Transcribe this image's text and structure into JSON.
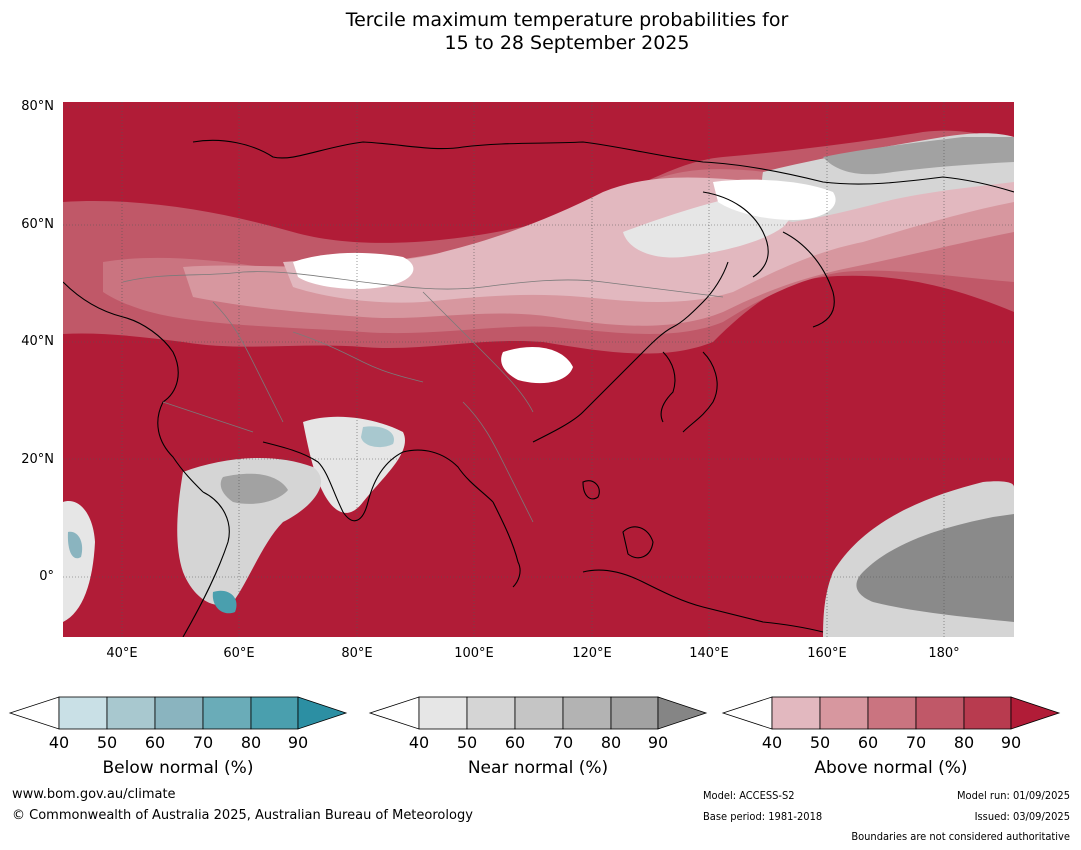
{
  "title": {
    "line1": "Tercile maximum temperature probabilities for",
    "line2": "15 to 28 September 2025"
  },
  "map": {
    "lat_labels": [
      "80°N",
      "60°N",
      "40°N",
      "20°N",
      "0°"
    ],
    "lon_labels": [
      "40°E",
      "60°E",
      "80°E",
      "100°E",
      "120°E",
      "140°E",
      "160°E",
      "180°"
    ],
    "region": "Asia",
    "colors": {
      "above_dominant": "#b11c37",
      "near_dominant": "#8a8a8a",
      "below_dominant": "#2c8fa3"
    }
  },
  "colorbars": [
    {
      "name": "below",
      "label": "Below normal (%)",
      "ticks": [
        "40",
        "50",
        "60",
        "70",
        "80",
        "90"
      ],
      "colors": [
        "#ffffff",
        "#c9e0e6",
        "#a8c8cf",
        "#8ab4bf",
        "#6aacb8",
        "#4a9fae",
        "#2c8fa3"
      ]
    },
    {
      "name": "near",
      "label": "Near normal (%)",
      "ticks": [
        "40",
        "50",
        "60",
        "70",
        "80",
        "90"
      ],
      "colors": [
        "#ffffff",
        "#e6e6e6",
        "#d5d5d5",
        "#c5c5c5",
        "#b3b3b3",
        "#a2a2a2",
        "#858585"
      ]
    },
    {
      "name": "above",
      "label": "Above normal (%)",
      "ticks": [
        "40",
        "50",
        "60",
        "70",
        "80",
        "90"
      ],
      "colors": [
        "#ffffff",
        "#e2b8bf",
        "#d7979f",
        "#ca7480",
        "#c05868",
        "#b83b4f",
        "#b11c37"
      ]
    }
  ],
  "footer": {
    "url": "www.bom.gov.au/climate",
    "copyright": "© Commonwealth of Australia 2025, Australian Bureau of Meteorology",
    "model": "Model: ACCESS-S2",
    "base_period": "Base period: 1981-2018",
    "model_run": "Model run: 01/09/2025",
    "issued": "Issued: 03/09/2025",
    "disclaimer": "Boundaries are not considered authoritative"
  }
}
